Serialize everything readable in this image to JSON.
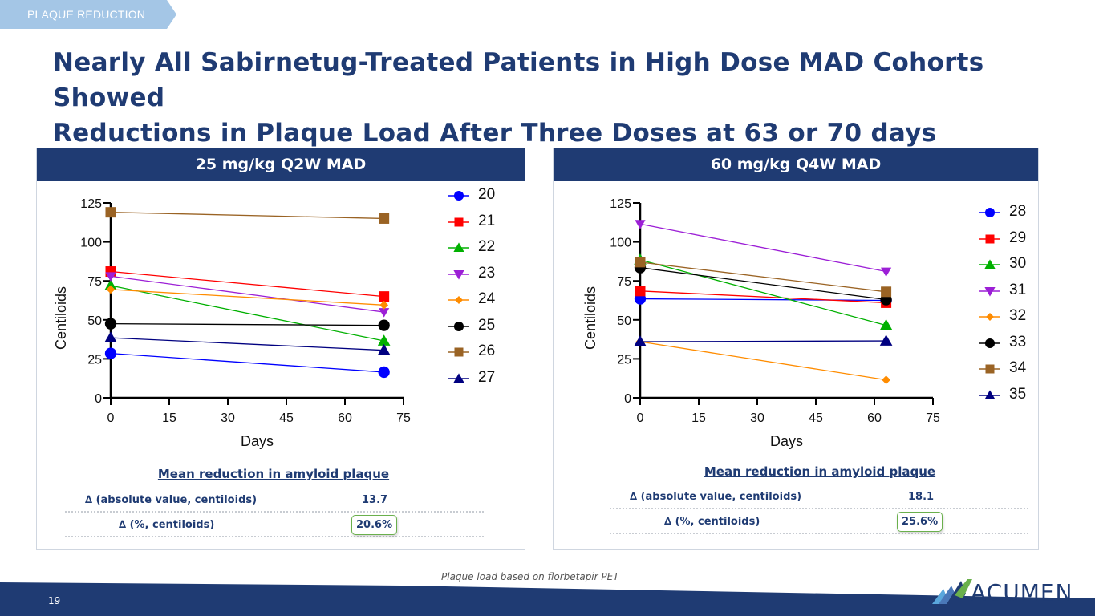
{
  "section_tag": "PLAQUE REDUCTION",
  "title_line1": "Nearly All Sabirnetug-Treated Patients in High Dose MAD Cohorts Showed",
  "title_line2": "Reductions in Plaque Load After Three Doses at 63 or 70 days",
  "footnote": "Plaque load based on florbetapir PET",
  "page_number": "19",
  "logo_text": "ACUMEN",
  "colors": {
    "navy": "#1f3b73",
    "tag": "#a4c6e6",
    "highlight_border": "#6ab04c"
  },
  "panels": [
    {
      "header": "25 mg/kg Q2W MAD",
      "stats": {
        "title": "Mean reduction in amyloid plaque",
        "abs_label": "∆ (absolute value, centiloids)",
        "abs_value": "13.7",
        "pct_label": "∆ (%, centiloids)",
        "pct_value": "20.6%"
      }
    },
    {
      "header": "60 mg/kg Q4W MAD",
      "stats": {
        "title": "Mean reduction in amyloid plaque",
        "abs_label": "∆ (absolute value, centiloids)",
        "abs_value": "18.1",
        "pct_label": "∆ (%, centiloids)",
        "pct_value": "25.6%"
      }
    }
  ],
  "chart_data": [
    {
      "type": "line",
      "title": "25 mg/kg Q2W MAD",
      "xlabel": "Days",
      "ylabel": "Centiloids",
      "xlim": [
        0,
        75
      ],
      "ylim": [
        0,
        125
      ],
      "xticks": [
        0,
        15,
        30,
        45,
        60,
        75
      ],
      "yticks": [
        0,
        25,
        50,
        75,
        100,
        125
      ],
      "grid": false,
      "legend_position": "right",
      "x": [
        0,
        70
      ],
      "series": [
        {
          "name": "20",
          "values": [
            28.5,
            16.5
          ],
          "color": "#0000ff",
          "marker": "circle"
        },
        {
          "name": "21",
          "values": [
            81,
            65
          ],
          "color": "#ff0000",
          "marker": "square"
        },
        {
          "name": "22",
          "values": [
            72,
            36.5
          ],
          "color": "#00b000",
          "marker": "triangle-up"
        },
        {
          "name": "23",
          "values": [
            78,
            55
          ],
          "color": "#9c1fd6",
          "marker": "triangle-down"
        },
        {
          "name": "24",
          "values": [
            69.5,
            59.5
          ],
          "color": "#ff8c00",
          "marker": "diamond"
        },
        {
          "name": "25",
          "values": [
            47.5,
            46.5
          ],
          "color": "#000000",
          "marker": "circle"
        },
        {
          "name": "26",
          "values": [
            119,
            115
          ],
          "color": "#9a6324",
          "marker": "square"
        },
        {
          "name": "27",
          "values": [
            38.5,
            30.5
          ],
          "color": "#000080",
          "marker": "triangle-up"
        }
      ]
    },
    {
      "type": "line",
      "title": "60 mg/kg Q4W MAD",
      "xlabel": "Days",
      "ylabel": "Centiloids",
      "xlim": [
        0,
        75
      ],
      "ylim": [
        0,
        125
      ],
      "xticks": [
        0,
        15,
        30,
        45,
        60,
        75
      ],
      "yticks": [
        0,
        25,
        50,
        75,
        100,
        125
      ],
      "grid": false,
      "legend_position": "right",
      "x": [
        0,
        63
      ],
      "series": [
        {
          "name": "28",
          "values": [
            63.5,
            62.5
          ],
          "color": "#0000ff",
          "marker": "circle"
        },
        {
          "name": "29",
          "values": [
            68.5,
            61
          ],
          "color": "#ff0000",
          "marker": "square"
        },
        {
          "name": "30",
          "values": [
            88.5,
            46.5
          ],
          "color": "#00b000",
          "marker": "triangle-up"
        },
        {
          "name": "31",
          "values": [
            111.5,
            81
          ],
          "color": "#9c1fd6",
          "marker": "triangle-down"
        },
        {
          "name": "32",
          "values": [
            36,
            11.5
          ],
          "color": "#ff8c00",
          "marker": "diamond"
        },
        {
          "name": "33",
          "values": [
            83.5,
            63
          ],
          "color": "#000000",
          "marker": "circle"
        },
        {
          "name": "34",
          "values": [
            87,
            68
          ],
          "color": "#9a6324",
          "marker": "square"
        },
        {
          "name": "35",
          "values": [
            36,
            36.5
          ],
          "color": "#000080",
          "marker": "triangle-up"
        }
      ]
    }
  ]
}
